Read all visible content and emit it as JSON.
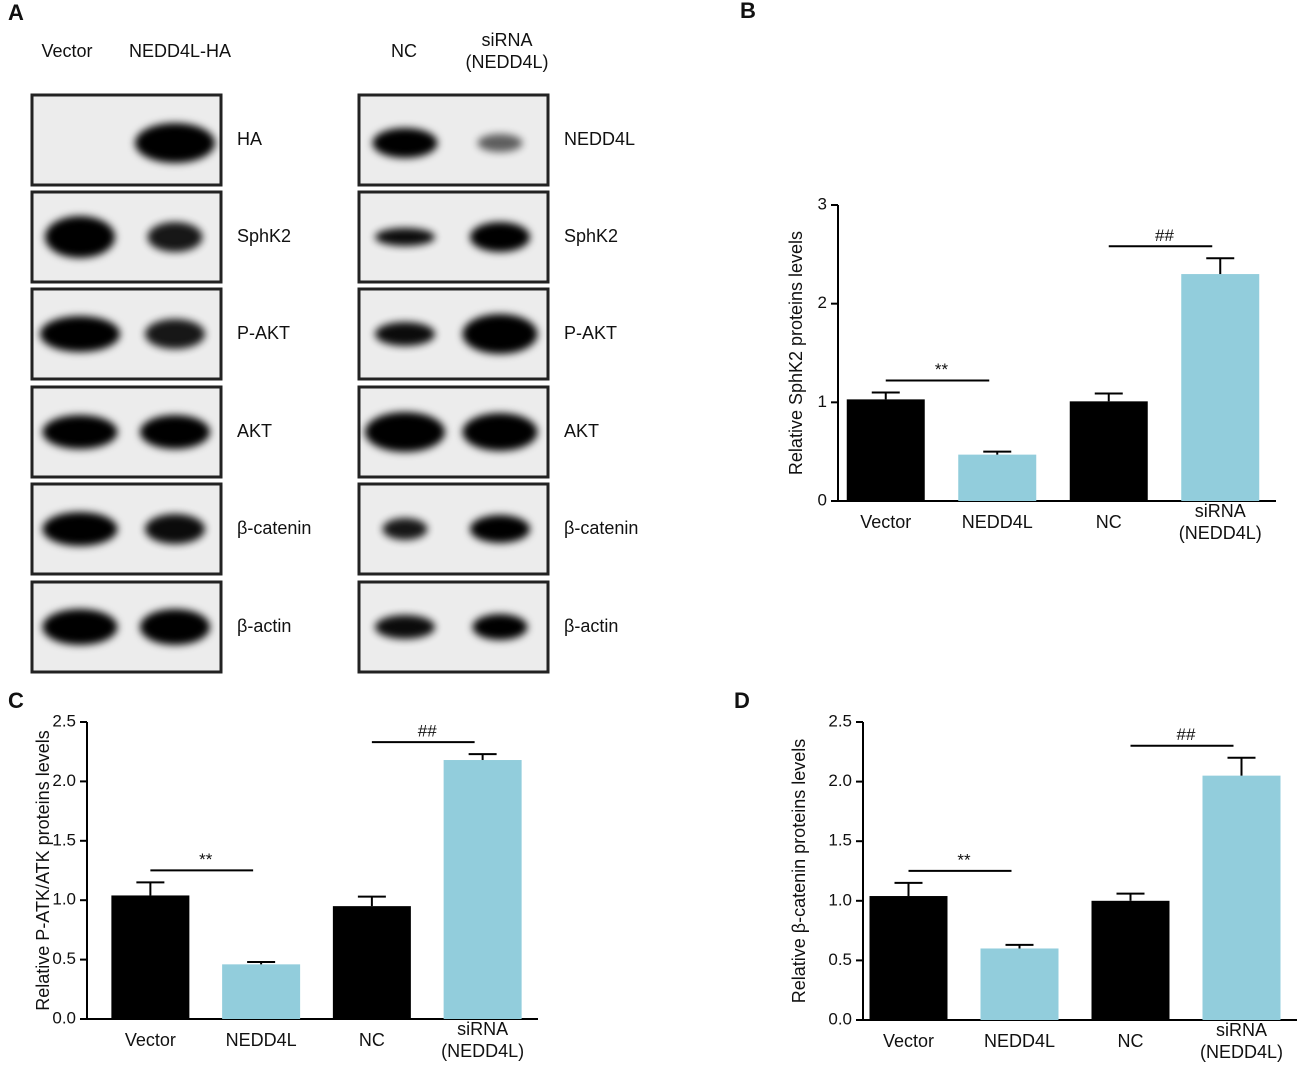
{
  "blots": {
    "panel_label": "A",
    "left": {
      "lanes": [
        "Vector",
        "NEDD4L-HA"
      ],
      "proteins": [
        "HA",
        "SphK2",
        "P-AKT",
        "AKT",
        "β-catenin",
        "β-actin"
      ]
    },
    "right": {
      "lanes": [
        "NC",
        "siRNA\n(NEDD4L)"
      ],
      "proteins": [
        "NEDD4L",
        "SphK2",
        "P-AKT",
        "AKT",
        "β-catenin",
        "β-actin"
      ]
    }
  },
  "chart_data": [
    {
      "type": "bar",
      "panel_label": "B",
      "y_label": "Relative SphK2 proteins levels",
      "categories": [
        "Vector",
        "NEDD4L",
        "NC",
        "siRNA\n(NEDD4L)"
      ],
      "values": [
        1.03,
        0.47,
        1.01,
        2.3
      ],
      "errors": [
        0.07,
        0.03,
        0.08,
        0.16
      ],
      "colors": [
        "#000000",
        "#92cddc",
        "#000000",
        "#92cddc"
      ],
      "ylim": [
        0,
        3
      ],
      "yticks": [
        0,
        1,
        2,
        3
      ],
      "annotations": [
        {
          "text": "**",
          "categories": [
            "Vector",
            "NEDD4L"
          ]
        },
        {
          "text": "##",
          "categories": [
            "NC",
            "siRNA\n(NEDD4L)"
          ]
        }
      ]
    },
    {
      "type": "bar",
      "panel_label": "C",
      "y_label": "Relative P-ATK/ATK proteins levels",
      "categories": [
        "Vector",
        "NEDD4L",
        "NC",
        "siRNA\n(NEDD4L)"
      ],
      "values": [
        1.04,
        0.46,
        0.95,
        2.18
      ],
      "errors": [
        0.11,
        0.02,
        0.08,
        0.05
      ],
      "colors": [
        "#000000",
        "#92cddc",
        "#000000",
        "#92cddc"
      ],
      "ylim": [
        0,
        2.5
      ],
      "yticks": [
        {
          "value": 0,
          "label": "0.0"
        },
        {
          "value": 0.5,
          "label": "0.5"
        },
        {
          "value": 1,
          "label": "1.0"
        },
        {
          "value": 1.5,
          "label": "1.5"
        },
        {
          "value": 2,
          "label": "2.0"
        },
        {
          "value": 2.5,
          "label": "2.5"
        }
      ],
      "annotations": [
        {
          "text": "**",
          "categories": [
            "Vector",
            "NEDD4L"
          ]
        },
        {
          "text": "##",
          "categories": [
            "NC",
            "siRNA\n(NEDD4L)"
          ]
        }
      ]
    },
    {
      "type": "bar",
      "panel_label": "D",
      "y_label": "Relative β-catenin proteins levels",
      "categories": [
        "Vector",
        "NEDD4L",
        "NC",
        "siRNA\n(NEDD4L)"
      ],
      "values": [
        1.04,
        0.6,
        1.0,
        2.05
      ],
      "errors": [
        0.11,
        0.03,
        0.06,
        0.15
      ],
      "colors": [
        "#000000",
        "#92cddc",
        "#000000",
        "#92cddc"
      ],
      "ylim": [
        0,
        2.5
      ],
      "yticks": [
        {
          "value": 0,
          "label": "0.0"
        },
        {
          "value": 0.5,
          "label": "0.5"
        },
        {
          "value": 1,
          "label": "1.0"
        },
        {
          "value": 1.5,
          "label": "1.5"
        },
        {
          "value": 2,
          "label": "2.0"
        },
        {
          "value": 2.5,
          "label": "2.5"
        }
      ],
      "annotations": [
        {
          "text": "**",
          "categories": [
            "Vector",
            "NEDD4L"
          ]
        },
        {
          "text": "##",
          "categories": [
            "NC",
            "siRNA\n(NEDD4L)"
          ]
        }
      ]
    }
  ]
}
